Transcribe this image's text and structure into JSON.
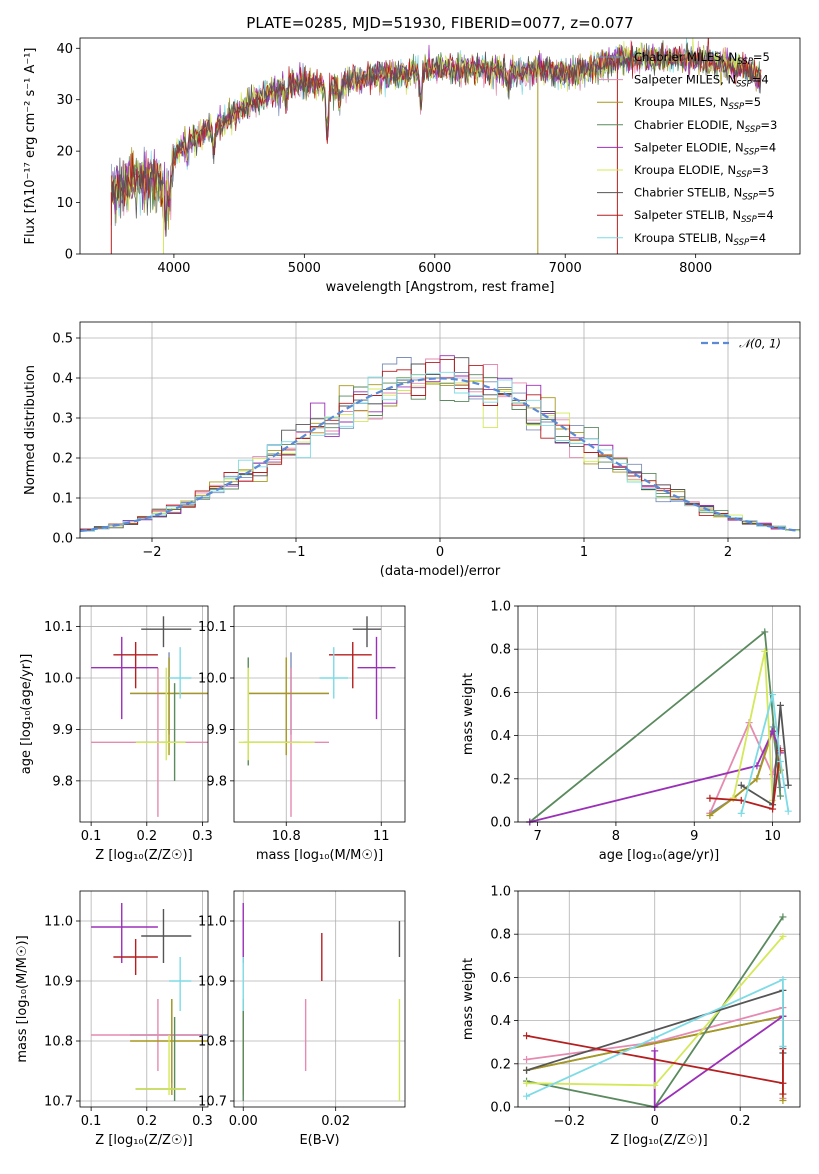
{
  "title": "PLATE=0285, MJD=51930, FIBERID=0077, z=0.077",
  "legend_models": [
    {
      "key": "cm",
      "label": "Chabrier MILES, N",
      "sub": "SSP",
      "suffix": "=5",
      "color": "#7d8fb8"
    },
    {
      "key": "sm",
      "label": "Salpeter MILES, N",
      "sub": "SSP",
      "suffix": "=4",
      "color": "#e58ab0"
    },
    {
      "key": "km",
      "label": "Kroupa MILES, N",
      "sub": "SSP",
      "suffix": "=5",
      "color": "#a8971d"
    },
    {
      "key": "ce",
      "label": "Chabrier ELODIE, N",
      "sub": "SSP",
      "suffix": "=3",
      "color": "#5a8a5e"
    },
    {
      "key": "se",
      "label": "Salpeter ELODIE, N",
      "sub": "SSP",
      "suffix": "=4",
      "color": "#9b30b8"
    },
    {
      "key": "ke",
      "label": "Kroupa ELODIE, N",
      "sub": "SSP",
      "suffix": "=3",
      "color": "#d4e85a"
    },
    {
      "key": "cs",
      "label": "Chabrier STELIB, N",
      "sub": "SSP",
      "suffix": "=5",
      "color": "#555555"
    },
    {
      "key": "ss",
      "label": "Salpeter STELIB, N",
      "sub": "SSP",
      "suffix": "=4",
      "color": "#b51f1f"
    },
    {
      "key": "ks",
      "label": "Kroupa STELIB, N",
      "sub": "SSP",
      "suffix": "=4",
      "color": "#7ddbe6"
    }
  ],
  "chart_data": [
    {
      "id": "spectrum",
      "type": "line",
      "xlabel": "wavelength [Angstrom, rest frame]",
      "ylabel": "Flux [fλ10⁻¹⁷ erg cm⁻² s⁻¹ A⁻¹]",
      "xlim": [
        3280,
        8800
      ],
      "ylim": [
        0,
        42
      ],
      "xticks": [
        4000,
        5000,
        6000,
        7000,
        8000
      ],
      "yticks": [
        0,
        10,
        20,
        30,
        40
      ],
      "continuum": [
        [
          3520,
          12
        ],
        [
          3700,
          14
        ],
        [
          3850,
          15
        ],
        [
          3950,
          13
        ],
        [
          4000,
          19
        ],
        [
          4100,
          22
        ],
        [
          4200,
          23
        ],
        [
          4400,
          26
        ],
        [
          4500,
          28
        ],
        [
          4700,
          31
        ],
        [
          4900,
          33
        ],
        [
          5100,
          33
        ],
        [
          5200,
          32
        ],
        [
          5400,
          34
        ],
        [
          5600,
          35
        ],
        [
          5800,
          35
        ],
        [
          5900,
          36
        ],
        [
          6000,
          36
        ],
        [
          6200,
          36
        ],
        [
          6400,
          36
        ],
        [
          6600,
          35
        ],
        [
          6800,
          36
        ],
        [
          7000,
          35
        ],
        [
          7200,
          36
        ],
        [
          7400,
          38
        ],
        [
          7600,
          38
        ],
        [
          7800,
          38
        ],
        [
          8000,
          38
        ],
        [
          8200,
          37
        ],
        [
          8400,
          36
        ],
        [
          8500,
          34
        ]
      ],
      "absorption_features": [
        [
          3934,
          -6
        ],
        [
          3969,
          -5
        ],
        [
          4102,
          -3
        ],
        [
          4304,
          -4
        ],
        [
          4861,
          -3
        ],
        [
          5175,
          -9
        ],
        [
          5270,
          -3
        ],
        [
          5892,
          -7
        ],
        [
          6563,
          -3
        ]
      ]
    },
    {
      "id": "residuals",
      "type": "line",
      "xlabel": "(data-model)/error",
      "ylabel": "Normed distribution",
      "xlim": [
        -2.5,
        2.5
      ],
      "ylim": [
        0,
        0.54
      ],
      "xticks": [
        -2,
        -1,
        0,
        1,
        2
      ],
      "yticks": [
        0.0,
        0.1,
        0.2,
        0.3,
        0.4,
        0.5
      ],
      "grid": true,
      "reference": {
        "name": "𝒩(0, 1)",
        "color": "#5b8ad6",
        "mean": 0,
        "sd": 1
      },
      "bin_width": 0.1
    },
    {
      "id": "age_vs_Z",
      "type": "scatter",
      "xlabel": "Z [log₁₀(Z/Z☉)]",
      "ylabel": "age  [log₁₀(age/yr)]",
      "xlim": [
        0.08,
        0.31
      ],
      "ylim": [
        9.72,
        10.14
      ],
      "xticks": [
        0.1,
        0.2,
        0.3
      ],
      "yticks": [
        9.8,
        9.9,
        10.0,
        10.1
      ],
      "points": [
        {
          "m": "cm",
          "x": 0.24,
          "y": 9.97,
          "xe": [
            0.17,
            0.31
          ],
          "ye": [
            9.89,
            10.05
          ]
        },
        {
          "m": "sm",
          "x": 0.22,
          "y": 9.875,
          "xe": [
            0.1,
            0.31
          ],
          "ye": [
            9.73,
            10.02
          ]
        },
        {
          "m": "km",
          "x": 0.24,
          "y": 9.97,
          "xe": [
            0.17,
            0.31
          ],
          "ye": [
            9.85,
            10.04
          ]
        },
        {
          "m": "ce",
          "x": 0.25,
          "y": 9.875,
          "xe": [
            0.18,
            0.27
          ],
          "ye": [
            9.8,
            9.99
          ]
        },
        {
          "m": "se",
          "x": 0.155,
          "y": 10.02,
          "xe": [
            0.1,
            0.22
          ],
          "ye": [
            9.92,
            10.08
          ]
        },
        {
          "m": "ke",
          "x": 0.235,
          "y": 9.875,
          "xe": [
            0.18,
            0.27
          ],
          "ye": [
            9.84,
            10.02
          ]
        },
        {
          "m": "cs",
          "x": 0.23,
          "y": 10.095,
          "xe": [
            0.19,
            0.28
          ],
          "ye": [
            10.06,
            10.12
          ]
        },
        {
          "m": "ss",
          "x": 0.18,
          "y": 10.045,
          "xe": [
            0.14,
            0.22
          ],
          "ye": [
            9.98,
            10.07
          ]
        },
        {
          "m": "ks",
          "x": 0.26,
          "y": 10.0,
          "xe": [
            0.24,
            0.28
          ],
          "ye": [
            9.96,
            10.06
          ]
        }
      ]
    },
    {
      "id": "age_vs_mass",
      "type": "scatter",
      "xlabel": "mass [log₁₀(M/M☉)]",
      "ylabel": "",
      "xlim": [
        10.69,
        11.05
      ],
      "ylim": [
        9.72,
        10.14
      ],
      "xticks": [
        10.8,
        11.0
      ],
      "yticks": [
        9.8,
        9.9,
        10.0,
        10.1
      ],
      "points": [
        {
          "m": "cm",
          "x": 10.81,
          "y": 9.97,
          "xe": [
            10.72,
            10.89
          ],
          "ye": [
            9.89,
            10.05
          ]
        },
        {
          "m": "sm",
          "x": 10.81,
          "y": 9.875,
          "xe": [
            10.72,
            10.89
          ],
          "ye": [
            9.73,
            10.02
          ]
        },
        {
          "m": "km",
          "x": 10.8,
          "y": 9.97,
          "xe": [
            10.72,
            10.89
          ],
          "ye": [
            9.85,
            10.04
          ]
        },
        {
          "m": "ce",
          "x": 10.72,
          "y": 9.875,
          "xe": [
            10.71,
            10.83
          ],
          "ye": [
            9.83,
            10.04
          ]
        },
        {
          "m": "se",
          "x": 10.99,
          "y": 10.02,
          "xe": [
            10.95,
            11.03
          ],
          "ye": [
            9.92,
            10.08
          ]
        },
        {
          "m": "ke",
          "x": 10.72,
          "y": 9.875,
          "xe": [
            10.7,
            10.86
          ],
          "ye": [
            9.84,
            10.02
          ]
        },
        {
          "m": "cs",
          "x": 10.97,
          "y": 10.095,
          "xe": [
            10.94,
            11.0
          ],
          "ye": [
            10.06,
            10.12
          ]
        },
        {
          "m": "ss",
          "x": 10.94,
          "y": 10.045,
          "xe": [
            10.89,
            10.98
          ],
          "ye": [
            9.98,
            10.07
          ]
        },
        {
          "m": "ks",
          "x": 10.9,
          "y": 10.0,
          "xe": [
            10.87,
            10.93
          ],
          "ye": [
            9.96,
            10.06
          ]
        }
      ]
    },
    {
      "id": "weight_vs_age",
      "type": "line",
      "xlabel": "age  [log₁₀(age/yr)]",
      "ylabel": "mass weight",
      "xlim": [
        6.75,
        10.35
      ],
      "ylim": [
        0,
        1.0
      ],
      "xticks": [
        7,
        8,
        9,
        10
      ],
      "yticks": [
        0.0,
        0.2,
        0.4,
        0.6,
        0.8,
        1.0
      ],
      "series": [
        {
          "m": "cm",
          "x": [
            9.2,
            9.5,
            9.8,
            10.0,
            10.1
          ],
          "y": [
            0.04,
            0.11,
            0.2,
            0.44,
            0.16
          ]
        },
        {
          "m": "sm",
          "x": [
            9.2,
            9.7,
            10.0,
            10.1
          ],
          "y": [
            0.04,
            0.46,
            0.22,
            0.34
          ]
        },
        {
          "m": "km",
          "x": [
            9.2,
            9.5,
            9.8,
            10.0,
            10.1
          ],
          "y": [
            0.03,
            0.11,
            0.2,
            0.42,
            0.24
          ]
        },
        {
          "m": "ce",
          "x": [
            6.9,
            9.9,
            10.1
          ],
          "y": [
            0.0,
            0.88,
            0.12
          ]
        },
        {
          "m": "se",
          "x": [
            6.9,
            9.8,
            10.0,
            10.1
          ],
          "y": [
            0.0,
            0.26,
            0.42,
            0.32
          ]
        },
        {
          "m": "ke",
          "x": [
            9.5,
            9.9,
            10.0
          ],
          "y": [
            0.11,
            0.79,
            0.1
          ]
        },
        {
          "m": "cs",
          "x": [
            9.6,
            10.0,
            10.1,
            10.2
          ],
          "y": [
            0.17,
            0.08,
            0.54,
            0.17
          ]
        },
        {
          "m": "ss",
          "x": [
            9.2,
            9.6,
            10.0,
            10.1
          ],
          "y": [
            0.11,
            0.1,
            0.06,
            0.33
          ]
        },
        {
          "m": "ks",
          "x": [
            9.6,
            10.0,
            10.1,
            10.2
          ],
          "y": [
            0.04,
            0.59,
            0.28,
            0.05
          ]
        }
      ]
    },
    {
      "id": "mass_vs_Z",
      "type": "scatter",
      "xlabel": "Z [log₁₀(Z/Z☉)]",
      "ylabel": "mass [log₁₀(M/M☉)]",
      "xlim": [
        0.08,
        0.31
      ],
      "ylim": [
        10.69,
        11.05
      ],
      "xticks": [
        0.1,
        0.2,
        0.3
      ],
      "yticks": [
        10.7,
        10.8,
        10.9,
        11.0
      ],
      "points": [
        {
          "m": "cm",
          "x": 0.245,
          "y": 10.81,
          "xe": [
            0.17,
            0.31
          ],
          "ye": [
            10.73,
            10.87
          ]
        },
        {
          "m": "sm",
          "x": 0.22,
          "y": 10.81,
          "xe": [
            0.1,
            0.3
          ],
          "ye": [
            10.75,
            10.87
          ]
        },
        {
          "m": "km",
          "x": 0.245,
          "y": 10.8,
          "xe": [
            0.17,
            0.31
          ],
          "ye": [
            10.71,
            10.87
          ]
        },
        {
          "m": "ce",
          "x": 0.25,
          "y": 10.72,
          "xe": [
            0.18,
            0.27
          ],
          "ye": [
            10.7,
            10.84
          ]
        },
        {
          "m": "se",
          "x": 0.155,
          "y": 10.99,
          "xe": [
            0.1,
            0.22
          ],
          "ye": [
            10.93,
            11.03
          ]
        },
        {
          "m": "ke",
          "x": 0.24,
          "y": 10.72,
          "xe": [
            0.18,
            0.27
          ],
          "ye": [
            10.71,
            10.81
          ]
        },
        {
          "m": "cs",
          "x": 0.23,
          "y": 10.975,
          "xe": [
            0.19,
            0.28
          ],
          "ye": [
            10.93,
            11.02
          ]
        },
        {
          "m": "ss",
          "x": 0.18,
          "y": 10.94,
          "xe": [
            0.14,
            0.22
          ],
          "ye": [
            10.91,
            10.97
          ]
        },
        {
          "m": "ks",
          "x": 0.26,
          "y": 10.9,
          "xe": [
            0.24,
            0.28
          ],
          "ye": [
            10.85,
            10.94
          ]
        }
      ]
    },
    {
      "id": "mass_vs_ebv",
      "type": "scatter",
      "xlabel": "E(B-V)",
      "ylabel": "",
      "xlim": [
        -0.002,
        0.035
      ],
      "ylim": [
        10.69,
        11.05
      ],
      "xticks": [
        0.0,
        0.02
      ],
      "yticks": [
        10.7,
        10.8,
        10.9,
        11.0
      ],
      "points": [
        {
          "m": "cm",
          "x": 0.0,
          "y": 10.81,
          "ye": [
            10.73,
            10.87
          ]
        },
        {
          "m": "sm",
          "x": 0.0135,
          "y": 10.81,
          "ye": [
            10.75,
            10.87
          ]
        },
        {
          "m": "km",
          "x": 0.0,
          "y": 10.8,
          "ye": [
            10.71,
            10.87
          ]
        },
        {
          "m": "ce",
          "x": 0.0,
          "y": 10.72,
          "ye": [
            10.7,
            10.87
          ]
        },
        {
          "m": "se",
          "x": 0.0,
          "y": 10.99,
          "ye": [
            10.93,
            11.03
          ]
        },
        {
          "m": "ke",
          "x": 0.0338,
          "y": 10.72,
          "ye": [
            10.7,
            10.87
          ]
        },
        {
          "m": "cs",
          "x": 0.0338,
          "y": 10.975,
          "ye": [
            10.94,
            11.0
          ]
        },
        {
          "m": "ss",
          "x": 0.017,
          "y": 10.94,
          "ye": [
            10.9,
            10.98
          ]
        },
        {
          "m": "ks",
          "x": 0.0,
          "y": 10.9,
          "ye": [
            10.85,
            10.94
          ]
        }
      ]
    },
    {
      "id": "weight_vs_Z",
      "type": "line",
      "xlabel": "Z [log₁₀(Z/Z☉)]",
      "ylabel": "mass weight",
      "xlim": [
        -0.32,
        0.34
      ],
      "ylim": [
        0,
        1.0
      ],
      "xticks": [
        -0.2,
        0.0,
        0.2
      ],
      "yticks": [
        0.0,
        0.2,
        0.4,
        0.6,
        0.8,
        1.0
      ],
      "series": [
        {
          "m": "cm",
          "x": [
            -0.3,
            0.3,
            0.3
          ],
          "y": [
            0.17,
            0.42,
            0.28
          ]
        },
        {
          "m": "sm",
          "x": [
            -0.3,
            0.0,
            0.3,
            0.3
          ],
          "y": [
            0.22,
            0.3,
            0.46,
            0.04
          ]
        },
        {
          "m": "km",
          "x": [
            -0.3,
            0.3,
            0.3
          ],
          "y": [
            0.17,
            0.42,
            0.03
          ]
        },
        {
          "m": "ce",
          "x": [
            -0.3,
            0.0,
            0.3
          ],
          "y": [
            0.12,
            0.0,
            0.88
          ]
        },
        {
          "m": "se",
          "x": [
            0.0,
            0.0,
            0.3
          ],
          "y": [
            0.26,
            0.0,
            0.42
          ]
        },
        {
          "m": "ke",
          "x": [
            -0.3,
            0.0,
            0.3
          ],
          "y": [
            0.11,
            0.1,
            0.79
          ]
        },
        {
          "m": "cs",
          "x": [
            -0.3,
            0.3,
            0.3
          ],
          "y": [
            0.17,
            0.54,
            0.25
          ]
        },
        {
          "m": "ss",
          "x": [
            -0.3,
            0.3,
            0.3,
            0.3
          ],
          "y": [
            0.33,
            0.11,
            0.27,
            0.06
          ]
        },
        {
          "m": "ks",
          "x": [
            -0.3,
            0.0,
            0.3,
            0.3
          ],
          "y": [
            0.05,
            0.32,
            0.59,
            0.28
          ]
        }
      ]
    }
  ]
}
